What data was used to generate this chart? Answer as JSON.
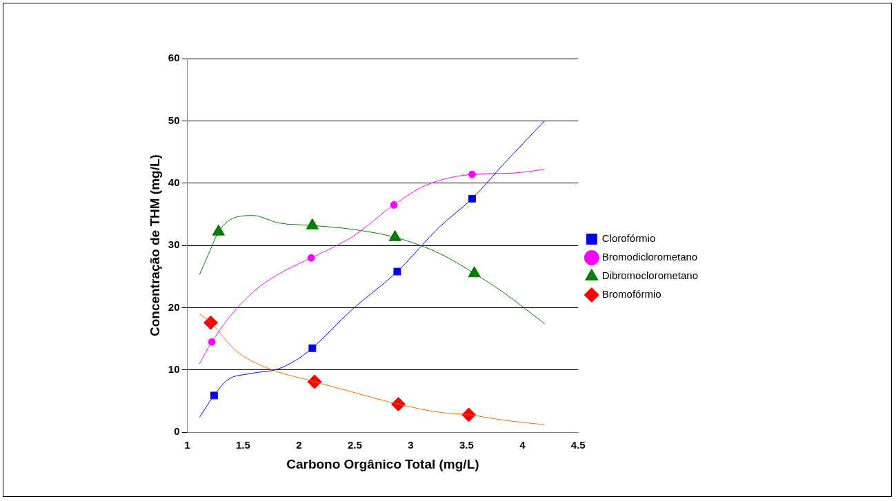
{
  "chart_data": {
    "type": "line",
    "xlabel": "Carbono Orgânico Total (mg/L)",
    "ylabel": "Concentração de THM (mg/L)",
    "xlim": [
      1,
      4.5
    ],
    "xticks": [
      1,
      1.5,
      2,
      2.5,
      3,
      3.5,
      4,
      4.5
    ],
    "ylim": [
      0,
      60
    ],
    "yticks": [
      0,
      10,
      20,
      30,
      40,
      50,
      60
    ],
    "grid": "y",
    "legend": "right",
    "series": [
      {
        "marker": "none",
        "color": "#0000ff",
        "x": [
          1.11,
          1.24,
          1.36,
          1.56,
          1.82,
          2.01,
          2.12,
          2.47,
          2.88,
          3.26,
          3.55,
          3.85,
          4.2
        ],
        "values": [
          2.4,
          5.9,
          8.4,
          9.4,
          10.2,
          12,
          13.5,
          19.6,
          25.8,
          33,
          37.5,
          43.4,
          50
        ]
      },
      {
        "marker": "none",
        "color": "#ff00ff",
        "x": [
          1.11,
          1.22,
          1.43,
          1.65,
          1.88,
          2.11,
          2.47,
          2.85,
          3.13,
          3.55,
          3.91,
          4.2
        ],
        "values": [
          11,
          14.5,
          19.6,
          23.4,
          26,
          28,
          31.3,
          36.5,
          39.6,
          41.4,
          41.6,
          42.2
        ]
      },
      {
        "marker": "none",
        "color": "#008000",
        "x": [
          1.11,
          1.2,
          1.28,
          1.43,
          1.59,
          1.82,
          2.12,
          2.47,
          2.86,
          3.26,
          3.57,
          3.85,
          4.2
        ],
        "values": [
          25.3,
          29,
          32.2,
          34.5,
          34.8,
          33.6,
          33.2,
          32.6,
          31.3,
          28.7,
          25.5,
          22.2,
          17.4
        ]
      },
      {
        "marker": "none",
        "color": "#ff6600",
        "x": [
          1.11,
          1.21,
          1.43,
          1.69,
          2.14,
          2.47,
          2.89,
          3.26,
          3.52,
          3.85,
          4.2
        ],
        "values": [
          19,
          17.6,
          13.2,
          10.5,
          8.1,
          6.5,
          4.5,
          3.2,
          2.8,
          1.9,
          1.2
        ]
      },
      {
        "type": "scatter",
        "name": "Clorofórmio",
        "marker": "square",
        "color": "#0000ff",
        "x": [
          1.24,
          2.12,
          2.88,
          3.55
        ],
        "values": [
          5.9,
          13.5,
          25.8,
          37.5
        ]
      },
      {
        "type": "scatter",
        "name": "Bromodiclorometano",
        "marker": "circle",
        "color": "#ff00ff",
        "x": [
          1.22,
          2.11,
          2.85,
          3.55
        ],
        "values": [
          14.5,
          28,
          36.5,
          41.4
        ]
      },
      {
        "type": "scatter",
        "name": "Dibromoclorometano",
        "marker": "triangle",
        "color": "#008000",
        "x": [
          1.28,
          2.12,
          2.86,
          3.57
        ],
        "values": [
          32.2,
          33.2,
          31.3,
          25.5
        ]
      },
      {
        "type": "scatter",
        "name": "Bromofórmio",
        "marker": "diamond",
        "color": "#ff0000",
        "x": [
          1.21,
          2.14,
          2.89,
          3.52
        ],
        "values": [
          17.6,
          8.1,
          4.5,
          2.8
        ]
      }
    ]
  }
}
